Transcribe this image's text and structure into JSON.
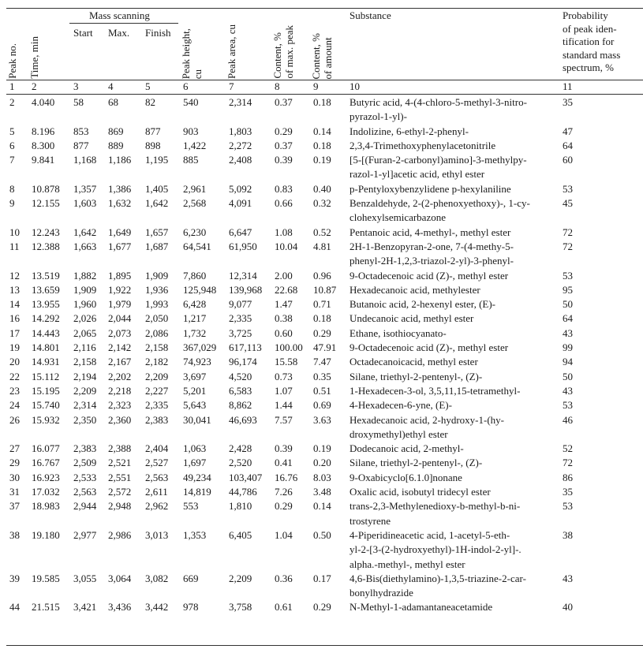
{
  "header": {
    "mass_scanning": "Mass scanning",
    "columns": [
      {
        "label": "Peak no.",
        "num": "1"
      },
      {
        "label": "Time, min",
        "num": "2"
      },
      {
        "label": "Start",
        "num": "3"
      },
      {
        "label": "Max.",
        "num": "4"
      },
      {
        "label": "Finish",
        "num": "5"
      },
      {
        "label": "Peak height,\ncu",
        "num": "6"
      },
      {
        "label": "Peak area, cu",
        "num": "7"
      },
      {
        "label": "Content, %\nof max. peak",
        "num": "8"
      },
      {
        "label": "Content, %\nof amount",
        "num": "9"
      },
      {
        "label": "Substance",
        "num": "10"
      },
      {
        "label": "Probability\nof peak iden-\ntification for\nstandard mass\nspectrum, %",
        "num": "11"
      }
    ]
  },
  "rows": [
    [
      "2",
      "4.040",
      "58",
      "68",
      "82",
      "540",
      "2,314",
      "0.37",
      "0.18",
      "Butyric acid, 4-(4-chloro-5-methyl-3-nitro-\npyrazol-1-yl)-",
      "35"
    ],
    [
      "5",
      "8.196",
      "853",
      "869",
      "877",
      "903",
      "1,803",
      "0.29",
      "0.14",
      "Indolizine, 6-ethyl-2-phenyl-",
      "47"
    ],
    [
      "6",
      "8.300",
      "877",
      "889",
      "898",
      "1,422",
      "2,272",
      "0.37",
      "0.18",
      "2,3,4-Trimethoxyphenylacetonitrile",
      "64"
    ],
    [
      "7",
      "9.841",
      "1,168",
      "1,186",
      "1,195",
      "885",
      "2,408",
      "0.39",
      "0.19",
      "[5-[(Furan-2-carbonyl)amino]-3-methylpy-\nrazol-1-yl]acetic acid, ethyl ester",
      "60"
    ],
    [
      "8",
      "10.878",
      "1,357",
      "1,386",
      "1,405",
      "2,961",
      "5,092",
      "0.83",
      "0.40",
      "p-Pentyloxybenzylidene p-hexylaniline",
      "53"
    ],
    [
      "9",
      "12.155",
      "1,603",
      "1,632",
      "1,642",
      "2,568",
      "4,091",
      "0.66",
      "0.32",
      "Benzaldehyde, 2-(2-phenoxyethoxy)-, 1-cy-\nclohexylsemicarbazone",
      "45"
    ],
    [
      "10",
      "12.243",
      "1,642",
      "1,649",
      "1,657",
      "6,230",
      "6,647",
      "1.08",
      "0.52",
      "Pentanoic acid, 4-methyl-, methyl ester",
      "72"
    ],
    [
      "11",
      "12.388",
      "1,663",
      "1,677",
      "1,687",
      "64,541",
      "61,950",
      "10.04",
      "4.81",
      "2H-1-Benzopyran-2-one, 7-(4-methy-5-\nphenyl-2H-1,2,3-triazol-2-yl)-3-phenyl-",
      "72"
    ],
    [
      "12",
      "13.519",
      "1,882",
      "1,895",
      "1,909",
      "7,860",
      "12,314",
      "2.00",
      "0.96",
      "9-Octadecenoic acid (Z)-, methyl ester",
      "53"
    ],
    [
      "13",
      "13.659",
      "1,909",
      "1,922",
      "1,936",
      "125,948",
      "139,968",
      "22.68",
      "10.87",
      "Hexadecanoic acid, methylester",
      "95"
    ],
    [
      "14",
      "13.955",
      "1,960",
      "1,979",
      "1,993",
      "6,428",
      "9,077",
      "1.47",
      "0.71",
      "Butanoic acid, 2-hexenyl ester, (E)-",
      "50"
    ],
    [
      "16",
      "14.292",
      "2,026",
      "2,044",
      "2,050",
      "1,217",
      "2,335",
      "0.38",
      "0.18",
      "Undecanoic acid, methyl ester",
      "64"
    ],
    [
      "17",
      "14.443",
      "2,065",
      "2,073",
      "2,086",
      "1,732",
      "3,725",
      "0.60",
      "0.29",
      "Ethane, isothiocyanato-",
      "43"
    ],
    [
      "19",
      "14.801",
      "2,116",
      "2,142",
      "2,158",
      "367,029",
      "617,113",
      "100.00",
      "47.91",
      "9-Octadecenoic acid (Z)-, methyl ester",
      "99"
    ],
    [
      "20",
      "14.931",
      "2,158",
      "2,167",
      "2,182",
      "74,923",
      "96,174",
      "15.58",
      "7.47",
      "Octadecanoicacid, methyl ester",
      "94"
    ],
    [
      "22",
      "15.112",
      "2,194",
      "2,202",
      "2,209",
      "3,697",
      "4,520",
      "0.73",
      "0.35",
      "Silane, triethyl-2-pentenyl-, (Z)-",
      "50"
    ],
    [
      "23",
      "15.195",
      "2,209",
      "2,218",
      "2,227",
      "5,201",
      "6,583",
      "1.07",
      "0.51",
      "1-Hexadecen-3-ol, 3,5,11,15-tetramethyl-",
      "43"
    ],
    [
      "24",
      "15.740",
      "2,314",
      "2,323",
      "2,335",
      "5,643",
      "8,862",
      "1.44",
      "0.69",
      "4-Hexadecen-6-yne, (E)-",
      "53"
    ],
    [
      "26",
      "15.932",
      "2,350",
      "2,360",
      "2,383",
      "30,041",
      "46,693",
      "7.57",
      "3.63",
      "Hexadecanoic acid, 2-hydroxy-1-(hy-\ndroxymethyl)ethyl ester",
      "46"
    ],
    [
      "27",
      "16.077",
      "2,383",
      "2,388",
      "2,404",
      "1,063",
      "2,428",
      "0.39",
      "0.19",
      "Dodecanoic acid, 2-methyl-",
      "52"
    ],
    [
      "29",
      "16.767",
      "2,509",
      "2,521",
      "2,527",
      "1,697",
      "2,520",
      "0.41",
      "0.20",
      "Silane, triethyl-2-pentenyl-, (Z)-",
      "72"
    ],
    [
      "30",
      "16.923",
      "2,533",
      "2,551",
      "2,563",
      "49,234",
      "103,407",
      "16.76",
      "8.03",
      "9-Oxabicyclo[6.1.0]nonane",
      "86"
    ],
    [
      "31",
      "17.032",
      "2,563",
      "2,572",
      "2,611",
      "14,819",
      "44,786",
      "7.26",
      "3.48",
      "Oxalic acid, isobutyl tridecyl ester",
      "35"
    ],
    [
      "37",
      "18.983",
      "2,944",
      "2,948",
      "2,962",
      "553",
      "1,810",
      "0.29",
      "0.14",
      "trans-2,3-Methylenedioxy-b-methyl-b-ni-\ntrostyrene",
      "53"
    ],
    [
      "38",
      "19.180",
      "2,977",
      "2,986",
      "3,013",
      "1,353",
      "6,405",
      "1.04",
      "0.50",
      "4-Piperidineacetic acid, 1-acetyl-5-eth-\nyl-2-[3-(2-hydroxyethyl)-1H-indol-2-yl]-.\nalpha.-methyl-, methyl ester",
      "38"
    ],
    [
      "39",
      "19.585",
      "3,055",
      "3,064",
      "3,082",
      "669",
      "2,209",
      "0.36",
      "0.17",
      "4,6-Bis(diethylamino)-1,3,5-triazine-2-car-\nbonylhydrazide",
      "43"
    ],
    [
      "44",
      "21.515",
      "3,421",
      "3,436",
      "3,442",
      "978",
      "3,758",
      "0.61",
      "0.29",
      "N-Methyl-1-adamantaneacetamide",
      "40"
    ]
  ]
}
